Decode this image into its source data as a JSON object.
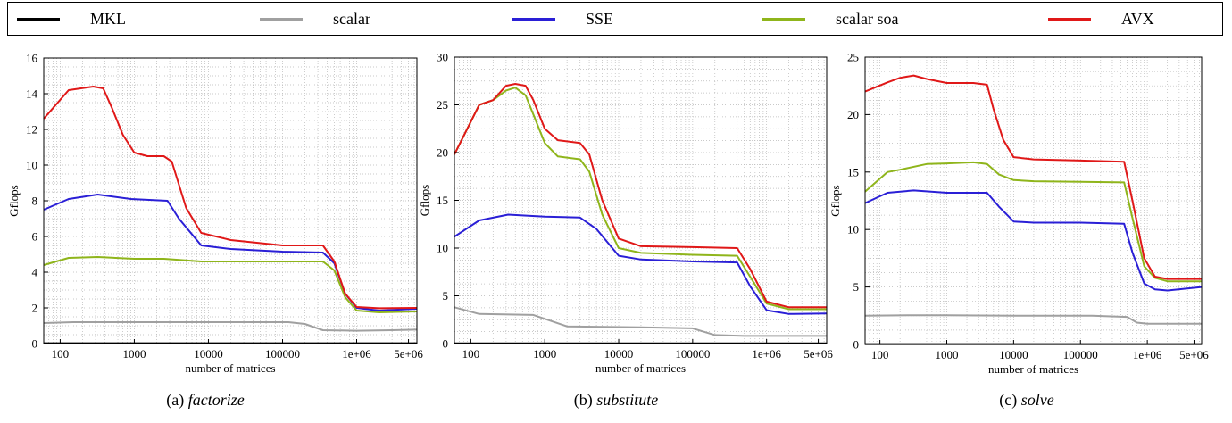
{
  "legend": [
    {
      "label": "MKL",
      "color": "#000000"
    },
    {
      "label": "scalar",
      "color": "#a0a0a0"
    },
    {
      "label": "SSE",
      "color": "#2a1fd6"
    },
    {
      "label": "scalar soa",
      "color": "#8fb51b"
    },
    {
      "label": "AVX",
      "color": "#e01818"
    }
  ],
  "captions": [
    {
      "prefix": "(a)",
      "name": "factorize"
    },
    {
      "prefix": "(b)",
      "name": "substitute"
    },
    {
      "prefix": "(c)",
      "name": "solve"
    }
  ],
  "chart_data": [
    {
      "type": "line",
      "xlabel": "number of matrices",
      "ylabel": "Gflops",
      "xscale": "log",
      "xlim": [
        60,
        6500000
      ],
      "ylim": [
        0,
        16
      ],
      "xticks": [
        {
          "v": 100,
          "label": "100"
        },
        {
          "v": 1000,
          "label": "1000"
        },
        {
          "v": 10000,
          "label": "10000"
        },
        {
          "v": 100000,
          "label": "100000"
        },
        {
          "v": 1000000,
          "label": "1e+06"
        },
        {
          "v": 5000000,
          "label": "5e+06"
        }
      ],
      "yticks": [
        0,
        2,
        4,
        6,
        8,
        10,
        12,
        14,
        16
      ],
      "grid": true,
      "series": [
        {
          "name": "MKL",
          "color": "#000000",
          "x": [
            60,
            6500000
          ],
          "y": [
            0.02,
            0.02
          ]
        },
        {
          "name": "scalar",
          "color": "#a0a0a0",
          "x": [
            60,
            150,
            1000,
            10000,
            120000,
            200000,
            350000,
            1000000,
            3000000,
            6500000
          ],
          "y": [
            1.15,
            1.2,
            1.2,
            1.2,
            1.2,
            1.1,
            0.75,
            0.72,
            0.75,
            0.78
          ]
        },
        {
          "name": "SSE",
          "color": "#2a1fd6",
          "x": [
            60,
            130,
            320,
            900,
            2800,
            4000,
            8000,
            20000,
            100000,
            350000,
            500000,
            700000,
            1000000,
            2000000,
            6500000
          ],
          "y": [
            7.5,
            8.1,
            8.35,
            8.1,
            8.0,
            7.0,
            5.5,
            5.3,
            5.15,
            5.1,
            4.5,
            2.8,
            2.0,
            1.85,
            1.95
          ]
        },
        {
          "name": "scalar soa",
          "color": "#8fb51b",
          "x": [
            60,
            130,
            320,
            1000,
            2500,
            8000,
            100000,
            350000,
            500000,
            700000,
            1000000,
            2000000,
            6500000
          ],
          "y": [
            4.4,
            4.8,
            4.85,
            4.75,
            4.75,
            4.6,
            4.6,
            4.6,
            4.1,
            2.6,
            1.85,
            1.75,
            1.8
          ]
        },
        {
          "name": "AVX",
          "color": "#e01818",
          "x": [
            60,
            130,
            280,
            380,
            500,
            700,
            1000,
            1500,
            2500,
            3200,
            5000,
            8000,
            20000,
            100000,
            350000,
            500000,
            700000,
            1000000,
            2000000,
            6500000
          ],
          "y": [
            12.6,
            14.2,
            14.4,
            14.3,
            13.2,
            11.7,
            10.7,
            10.5,
            10.5,
            10.2,
            7.6,
            6.2,
            5.8,
            5.5,
            5.5,
            4.6,
            2.8,
            2.05,
            1.98,
            2.0
          ]
        }
      ]
    },
    {
      "type": "line",
      "xlabel": "number of matrices",
      "ylabel": "Gflops",
      "xscale": "log",
      "xlim": [
        60,
        6500000
      ],
      "ylim": [
        0,
        30
      ],
      "xticks": [
        {
          "v": 100,
          "label": "100"
        },
        {
          "v": 1000,
          "label": "1000"
        },
        {
          "v": 10000,
          "label": "10000"
        },
        {
          "v": 100000,
          "label": "100000"
        },
        {
          "v": 1000000,
          "label": "1e+06"
        },
        {
          "v": 5000000,
          "label": "5e+06"
        }
      ],
      "yticks": [
        0,
        5,
        10,
        15,
        20,
        25,
        30
      ],
      "grid": true,
      "series": [
        {
          "name": "MKL",
          "color": "#000000",
          "x": [
            60,
            6500000
          ],
          "y": [
            0.03,
            0.03
          ]
        },
        {
          "name": "scalar",
          "color": "#a0a0a0",
          "x": [
            60,
            130,
            700,
            2000,
            20000,
            100000,
            200000,
            500000,
            6500000
          ],
          "y": [
            3.8,
            3.1,
            3.0,
            1.8,
            1.7,
            1.6,
            0.9,
            0.8,
            0.8
          ]
        },
        {
          "name": "SSE",
          "color": "#2a1fd6",
          "x": [
            60,
            130,
            320,
            1000,
            3000,
            5000,
            10000,
            20000,
            100000,
            400000,
            600000,
            1000000,
            2000000,
            6500000
          ],
          "y": [
            11.2,
            12.9,
            13.5,
            13.3,
            13.2,
            12.0,
            9.2,
            8.8,
            8.6,
            8.5,
            6.0,
            3.5,
            3.1,
            3.15
          ]
        },
        {
          "name": "scalar soa",
          "color": "#8fb51b",
          "x": [
            60,
            130,
            200,
            300,
            400,
            550,
            700,
            1000,
            1500,
            3000,
            4000,
            6000,
            10000,
            20000,
            100000,
            400000,
            600000,
            1000000,
            2000000,
            6500000
          ],
          "y": [
            19.8,
            25.0,
            25.5,
            26.5,
            26.8,
            26.0,
            24.0,
            21.0,
            19.6,
            19.3,
            18.0,
            13.5,
            10.0,
            9.5,
            9.3,
            9.2,
            7.0,
            4.2,
            3.6,
            3.6
          ]
        },
        {
          "name": "AVX",
          "color": "#e01818",
          "x": [
            60,
            130,
            200,
            300,
            400,
            550,
            700,
            1000,
            1500,
            3000,
            4000,
            6000,
            10000,
            20000,
            100000,
            400000,
            600000,
            1000000,
            2000000,
            6500000
          ],
          "y": [
            19.8,
            25.0,
            25.5,
            27.0,
            27.2,
            27.0,
            25.5,
            22.5,
            21.3,
            21.0,
            19.8,
            15.0,
            11.0,
            10.2,
            10.1,
            10.0,
            7.8,
            4.4,
            3.8,
            3.8
          ]
        }
      ]
    },
    {
      "type": "line",
      "xlabel": "number of matrices",
      "ylabel": "Gflops",
      "xscale": "log",
      "xlim": [
        60,
        6500000
      ],
      "ylim": [
        0,
        25
      ],
      "xticks": [
        {
          "v": 100,
          "label": "100"
        },
        {
          "v": 1000,
          "label": "1000"
        },
        {
          "v": 10000,
          "label": "10000"
        },
        {
          "v": 100000,
          "label": "100000"
        },
        {
          "v": 1000000,
          "label": "1e+06"
        },
        {
          "v": 5000000,
          "label": "5e+06"
        }
      ],
      "yticks": [
        0,
        5,
        10,
        15,
        20,
        25
      ],
      "grid": true,
      "series": [
        {
          "name": "MKL",
          "color": "#000000",
          "x": [
            60,
            6500000
          ],
          "y": [
            0.03,
            0.03
          ]
        },
        {
          "name": "scalar",
          "color": "#a0a0a0",
          "x": [
            60,
            300,
            1000,
            10000,
            150000,
            500000,
            700000,
            1000000,
            6500000
          ],
          "y": [
            2.5,
            2.55,
            2.55,
            2.5,
            2.5,
            2.4,
            1.9,
            1.8,
            1.8
          ]
        },
        {
          "name": "SSE",
          "color": "#2a1fd6",
          "x": [
            60,
            130,
            320,
            1000,
            4000,
            6000,
            10000,
            20000,
            100000,
            450000,
            600000,
            900000,
            1300000,
            2000000,
            6500000
          ],
          "y": [
            12.3,
            13.2,
            13.4,
            13.2,
            13.2,
            12.0,
            10.7,
            10.6,
            10.6,
            10.5,
            8.0,
            5.3,
            4.8,
            4.7,
            5.0
          ]
        },
        {
          "name": "scalar soa",
          "color": "#8fb51b",
          "x": [
            60,
            130,
            200,
            500,
            1000,
            2500,
            4000,
            6000,
            10000,
            20000,
            100000,
            450000,
            600000,
            900000,
            1300000,
            2000000,
            6500000
          ],
          "y": [
            13.3,
            15.0,
            15.2,
            15.7,
            15.75,
            15.85,
            15.7,
            14.8,
            14.3,
            14.2,
            14.15,
            14.1,
            11.0,
            6.8,
            5.8,
            5.5,
            5.5
          ]
        },
        {
          "name": "AVX",
          "color": "#e01818",
          "x": [
            60,
            130,
            200,
            320,
            500,
            1000,
            2500,
            4000,
            5000,
            7000,
            10000,
            20000,
            100000,
            450000,
            600000,
            900000,
            1300000,
            2000000,
            6500000
          ],
          "y": [
            22.0,
            22.8,
            23.2,
            23.4,
            23.1,
            22.75,
            22.75,
            22.6,
            20.5,
            17.8,
            16.3,
            16.1,
            16.0,
            15.9,
            12.5,
            7.5,
            5.9,
            5.7,
            5.7
          ]
        }
      ]
    }
  ]
}
